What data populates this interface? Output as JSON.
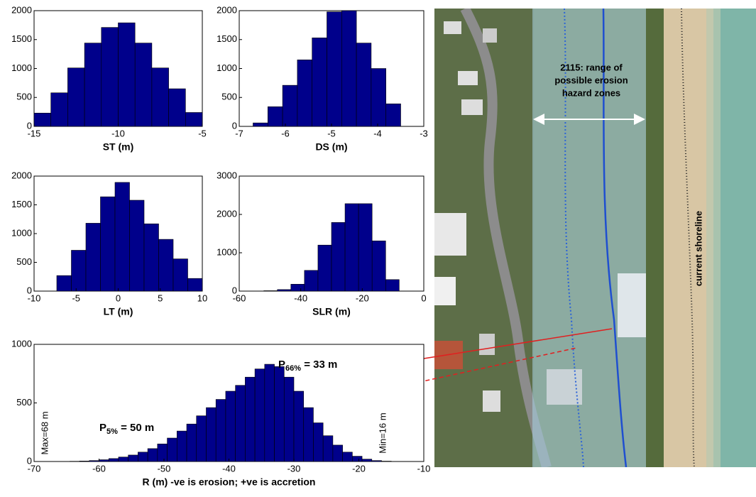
{
  "chart_data": [
    {
      "type": "histogram",
      "xlabel": "ST (m)",
      "color": "#00008b",
      "bins": [
        -15,
        -14,
        -13,
        -12,
        -11,
        -10,
        -9,
        -8,
        -7,
        -6,
        -5
      ],
      "values": [
        230,
        580,
        1010,
        1440,
        1710,
        1790,
        1440,
        1010,
        650,
        240
      ],
      "xlim": [
        -15,
        -5
      ],
      "xticks": [
        -15,
        -10,
        -5
      ],
      "ylim": [
        0,
        2000
      ],
      "yticks": [
        0,
        500,
        1000,
        1500,
        2000
      ]
    },
    {
      "type": "histogram",
      "xlabel": "DS (m)",
      "color": "#00008b",
      "bins": [
        -6.7,
        -6.38,
        -6.06,
        -5.74,
        -5.42,
        -5.1,
        -4.78,
        -4.46,
        -4.14,
        -3.82,
        -3.5
      ],
      "values": [
        60,
        340,
        710,
        1150,
        1530,
        1980,
        2000,
        1440,
        1000,
        390
      ],
      "xlim": [
        -7,
        -3
      ],
      "xticks": [
        -7,
        -6,
        -5,
        -4,
        -3
      ],
      "ylim": [
        0,
        2000
      ],
      "yticks": [
        0,
        500,
        1000,
        1500,
        2000
      ]
    },
    {
      "type": "histogram",
      "xlabel": "LT (m)",
      "color": "#00008b",
      "bins": [
        -7.3,
        -5.57,
        -3.84,
        -2.11,
        -0.38,
        1.35,
        3.08,
        4.81,
        6.54,
        8.27,
        10.0
      ],
      "values": [
        270,
        710,
        1180,
        1640,
        1890,
        1580,
        1170,
        900,
        560,
        220
      ],
      "xlim": [
        -10,
        10
      ],
      "xticks": [
        -10,
        -5,
        0,
        5,
        10
      ],
      "ylim": [
        0,
        2000
      ],
      "yticks": [
        0,
        500,
        1000,
        1500,
        2000
      ]
    },
    {
      "type": "histogram",
      "xlabel": "SLR (m)",
      "color": "#00008b",
      "bins": [
        -52,
        -47.6,
        -43.2,
        -38.8,
        -34.4,
        -30,
        -25.6,
        -21.2,
        -16.8,
        -12.4,
        -8
      ],
      "values": [
        10,
        40,
        180,
        540,
        1200,
        1790,
        2280,
        2280,
        1310,
        300
      ],
      "xlim": [
        -60,
        0
      ],
      "xticks": [
        -60,
        -40,
        -20,
        0
      ],
      "ylim": [
        0,
        3000
      ],
      "yticks": [
        0,
        1000,
        2000,
        3000
      ]
    },
    {
      "type": "histogram",
      "xlabel": "R (m) -ve is erosion; +ve is accretion",
      "color": "#00008b",
      "bins": [
        -64.5,
        -63,
        -61.5,
        -60,
        -58.5,
        -57,
        -55.5,
        -54,
        -52.5,
        -51,
        -49.5,
        -48,
        -46.5,
        -45,
        -43.5,
        -42,
        -40.5,
        -39,
        -37.5,
        -36,
        -34.5,
        -33,
        -31.5,
        -30,
        -28.5,
        -27,
        -25.5,
        -24,
        -22.5,
        -21,
        -19.5,
        -18,
        -16.5,
        -15
      ],
      "values": [
        2,
        4,
        8,
        15,
        25,
        38,
        55,
        80,
        110,
        150,
        200,
        260,
        320,
        390,
        460,
        530,
        600,
        650,
        720,
        790,
        830,
        810,
        720,
        600,
        460,
        330,
        220,
        140,
        80,
        45,
        20,
        8,
        3
      ],
      "xlim": [
        -70,
        -10
      ],
      "xticks": [
        -70,
        -60,
        -50,
        -40,
        -30,
        -20,
        -10
      ],
      "ylim": [
        0,
        1000
      ],
      "yticks": [
        0,
        500,
        1000
      ],
      "annotations": [
        {
          "text": "P",
          "subscript": "66%",
          "suffix": " = 33 m"
        },
        {
          "text": "P",
          "subscript": "5%",
          "suffix": " = 50 m"
        },
        {
          "text": "Max=68 m"
        },
        {
          "text": "Min=16 m"
        }
      ]
    }
  ],
  "photo": {
    "hazard_label": [
      "2115: range of",
      "possible erosion",
      "hazard zones"
    ],
    "shoreline_label": "current shoreline"
  }
}
